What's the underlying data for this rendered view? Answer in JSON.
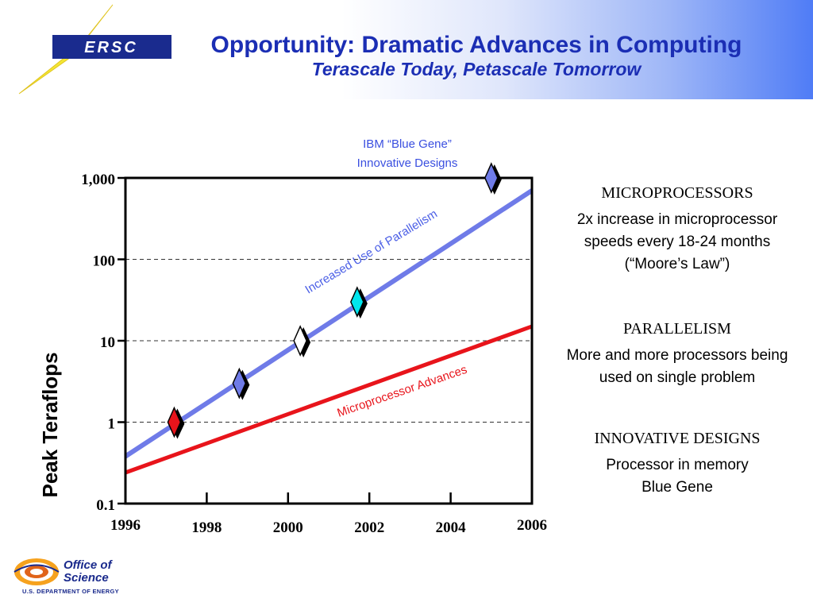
{
  "header": {
    "logo_text": "ERSC",
    "title": "Opportunity: Dramatic Advances in Computing",
    "subtitle": "Terascale Today, Petascale Tomorrow"
  },
  "chart_data": {
    "type": "line",
    "ylabel": "Peak Teraflops",
    "yscale": "log",
    "ylim": [
      0.1,
      1000
    ],
    "xlim": [
      1996,
      2006
    ],
    "y_ticks": [
      {
        "value": 0.1,
        "label": "0.1"
      },
      {
        "value": 1,
        "label": "1"
      },
      {
        "value": 10,
        "label": "10"
      },
      {
        "value": 100,
        "label": "100"
      },
      {
        "value": 1000,
        "label": "1,000"
      }
    ],
    "x_ticks": [
      {
        "value": 1996,
        "label": "1996"
      },
      {
        "value": 1998,
        "label": "1998"
      },
      {
        "value": 2000,
        "label": "2000"
      },
      {
        "value": 2002,
        "label": "2002"
      },
      {
        "value": 2004,
        "label": "2004"
      },
      {
        "value": 2006,
        "label": "2006"
      }
    ],
    "grid_y": true,
    "series": [
      {
        "name": "Increased Use of Parallelism",
        "color": "#6f7be8",
        "x": [
          1996,
          2006
        ],
        "y": [
          0.38,
          700
        ]
      },
      {
        "name": "Microprocessor Advances",
        "color": "#e8141b",
        "x": [
          1996,
          2006
        ],
        "y": [
          0.24,
          15
        ]
      }
    ],
    "points": [
      {
        "x": 1997.2,
        "y": 1.0,
        "color": "#e8141b"
      },
      {
        "x": 1998.8,
        "y": 3.0,
        "color": "#6f7be8"
      },
      {
        "x": 2000.3,
        "y": 10,
        "color": "#ffffff"
      },
      {
        "x": 2001.7,
        "y": 30,
        "color": "#00e5ee"
      },
      {
        "x": 2005.0,
        "y": 1000,
        "color": "#6f7be8"
      }
    ],
    "annotations": [
      {
        "text": "IBM “Blue Gene”",
        "color": "#3a4fe0"
      },
      {
        "text": "Innovative Designs",
        "color": "#3a4fe0"
      }
    ]
  },
  "side": {
    "microprocessors_heading": "MICROPROCESSORS",
    "microprocessors_text": "2x increase in microprocessor speeds every 18-24 months (“Moore’s Law”)",
    "parallelism_heading": "PARALLELISM",
    "parallelism_text": "More and more processors being used on single problem",
    "innovative_heading": "INNOVATIVE DESIGNS",
    "innovative_line1": "Processor in memory",
    "innovative_line2": "Blue Gene"
  },
  "footer": {
    "line1": "Office of",
    "line2": "Science",
    "line3": "U.S. DEPARTMENT OF ENERGY"
  }
}
